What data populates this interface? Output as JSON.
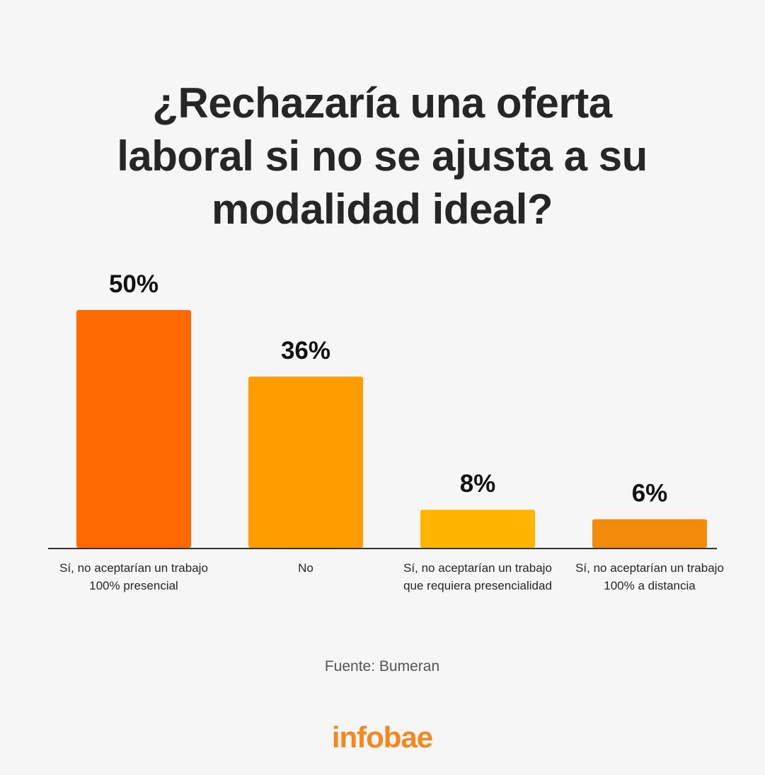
{
  "chart_data": {
    "type": "bar",
    "title": "¿Rechazaría una oferta laboral si no se ajusta a su modalidad ideal?",
    "categories": [
      "Sí, no aceptarían un trabajo 100% presencial",
      "No",
      "Sí, no aceptarían un trabajo que requiera presencialidad",
      "Sí, no aceptarían un trabajo 100% a distancia"
    ],
    "values": [
      50,
      36,
      8,
      6
    ],
    "value_labels": [
      "50%",
      "36%",
      "8%",
      "6%"
    ],
    "colors": [
      "#ff6b00",
      "#ff9c00",
      "#ffb400",
      "#f28b0a"
    ],
    "unit": "%",
    "ylim": [
      0,
      50
    ],
    "grid": false,
    "legend": "none"
  },
  "source": "Fuente: Bumeran",
  "brand": "infobae",
  "brand_color": "#f7861e",
  "baseline_color": "#333333"
}
